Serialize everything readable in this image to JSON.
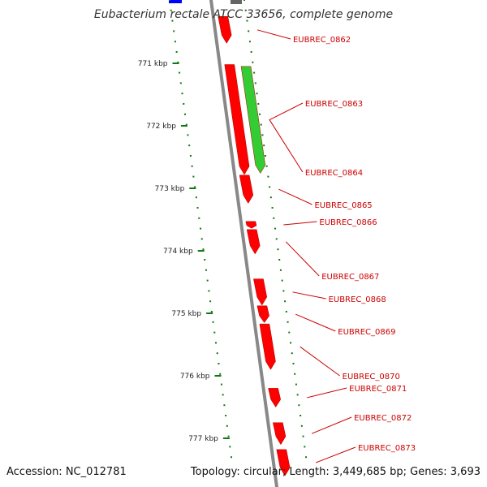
{
  "title": "Eubacterium rectale ATCC 33656, complete genome",
  "footer": {
    "accession": "Accession: NC_012781",
    "topology": "Topology: circular; Length: 3,449,685 bp; Genes: 3,693"
  },
  "colors": {
    "gene_label": "#cc0000",
    "forward_gene": "#ff0000",
    "reverse_gene": "#33cc33",
    "other_feature": "#0000ff",
    "tick": "#117711",
    "backbone": "#888888"
  },
  "kbp_ticks": [
    {
      "label": "771 kbp",
      "pos": 771
    },
    {
      "label": "772 kbp",
      "pos": 772
    },
    {
      "label": "773 kbp",
      "pos": 773
    },
    {
      "label": "774 kbp",
      "pos": 774
    },
    {
      "label": "775 kbp",
      "pos": 775
    },
    {
      "label": "776 kbp",
      "pos": 776
    },
    {
      "label": "777 kbp",
      "pos": 777
    }
  ],
  "genes": [
    {
      "label": "EUBREC_0862",
      "strand": "forward",
      "start": 770.25,
      "end": 770.68
    },
    {
      "label": "EUBREC_0863",
      "strand": "reverse",
      "start": 771.05,
      "end": 772.76
    },
    {
      "label": "EUBREC_0864",
      "strand": "forward",
      "start": 771.02,
      "end": 772.78
    },
    {
      "label": "EUBREC_0865",
      "strand": "forward",
      "start": 772.79,
      "end": 773.24
    },
    {
      "label": "EUBREC_0866",
      "strand": "forward",
      "start": 773.53,
      "end": 773.64
    },
    {
      "label": "EUBREC_0867",
      "strand": "forward",
      "start": 773.66,
      "end": 774.05
    },
    {
      "label": "EUBREC_0868",
      "strand": "forward",
      "start": 774.45,
      "end": 774.87
    },
    {
      "label": "EUBREC_0869",
      "strand": "forward",
      "start": 774.88,
      "end": 775.15
    },
    {
      "label": "EUBREC_0870",
      "strand": "forward",
      "start": 775.17,
      "end": 775.9
    },
    {
      "label": "EUBREC_0871",
      "strand": "forward",
      "start": 776.2,
      "end": 776.5
    },
    {
      "label": "EUBREC_0872",
      "strand": "forward",
      "start": 776.75,
      "end": 777.1
    },
    {
      "label": "EUBREC_0873",
      "strand": "forward",
      "start": 777.18,
      "end": 777.6
    }
  ]
}
